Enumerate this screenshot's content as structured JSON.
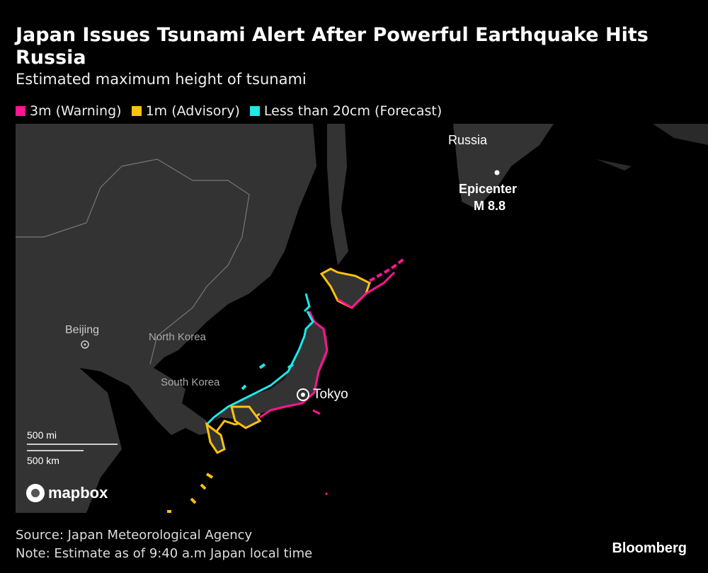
{
  "title": "Japan Issues Tsunami Alert After Powerful Earthquake Hits Russia",
  "subtitle": "Estimated maximum height of tsunami",
  "legend": [
    {
      "label": "3m (Warning)",
      "color": "#ff1493"
    },
    {
      "label": "1m (Advisory)",
      "color": "#ffc20e"
    },
    {
      "label": "Less than 20cm (Forecast)",
      "color": "#1de9e6"
    }
  ],
  "map": {
    "labels": {
      "russia": "Russia",
      "epicenter": "Epicenter",
      "magnitude": "M 8.8",
      "beijing": "Beijing",
      "north_korea": "North Korea",
      "south_korea": "South Korea",
      "tokyo": "Tokyo"
    },
    "scale": {
      "miles": "500 mi",
      "km": "500 km"
    },
    "attribution": "mapbox",
    "land_color": "#333333",
    "sea_color": "#000000"
  },
  "footer": {
    "source": "Source: Japan Meteorological Agency",
    "note": "Note: Estimate as of 9:40 a.m Japan local time"
  },
  "brand": "Bloomberg"
}
